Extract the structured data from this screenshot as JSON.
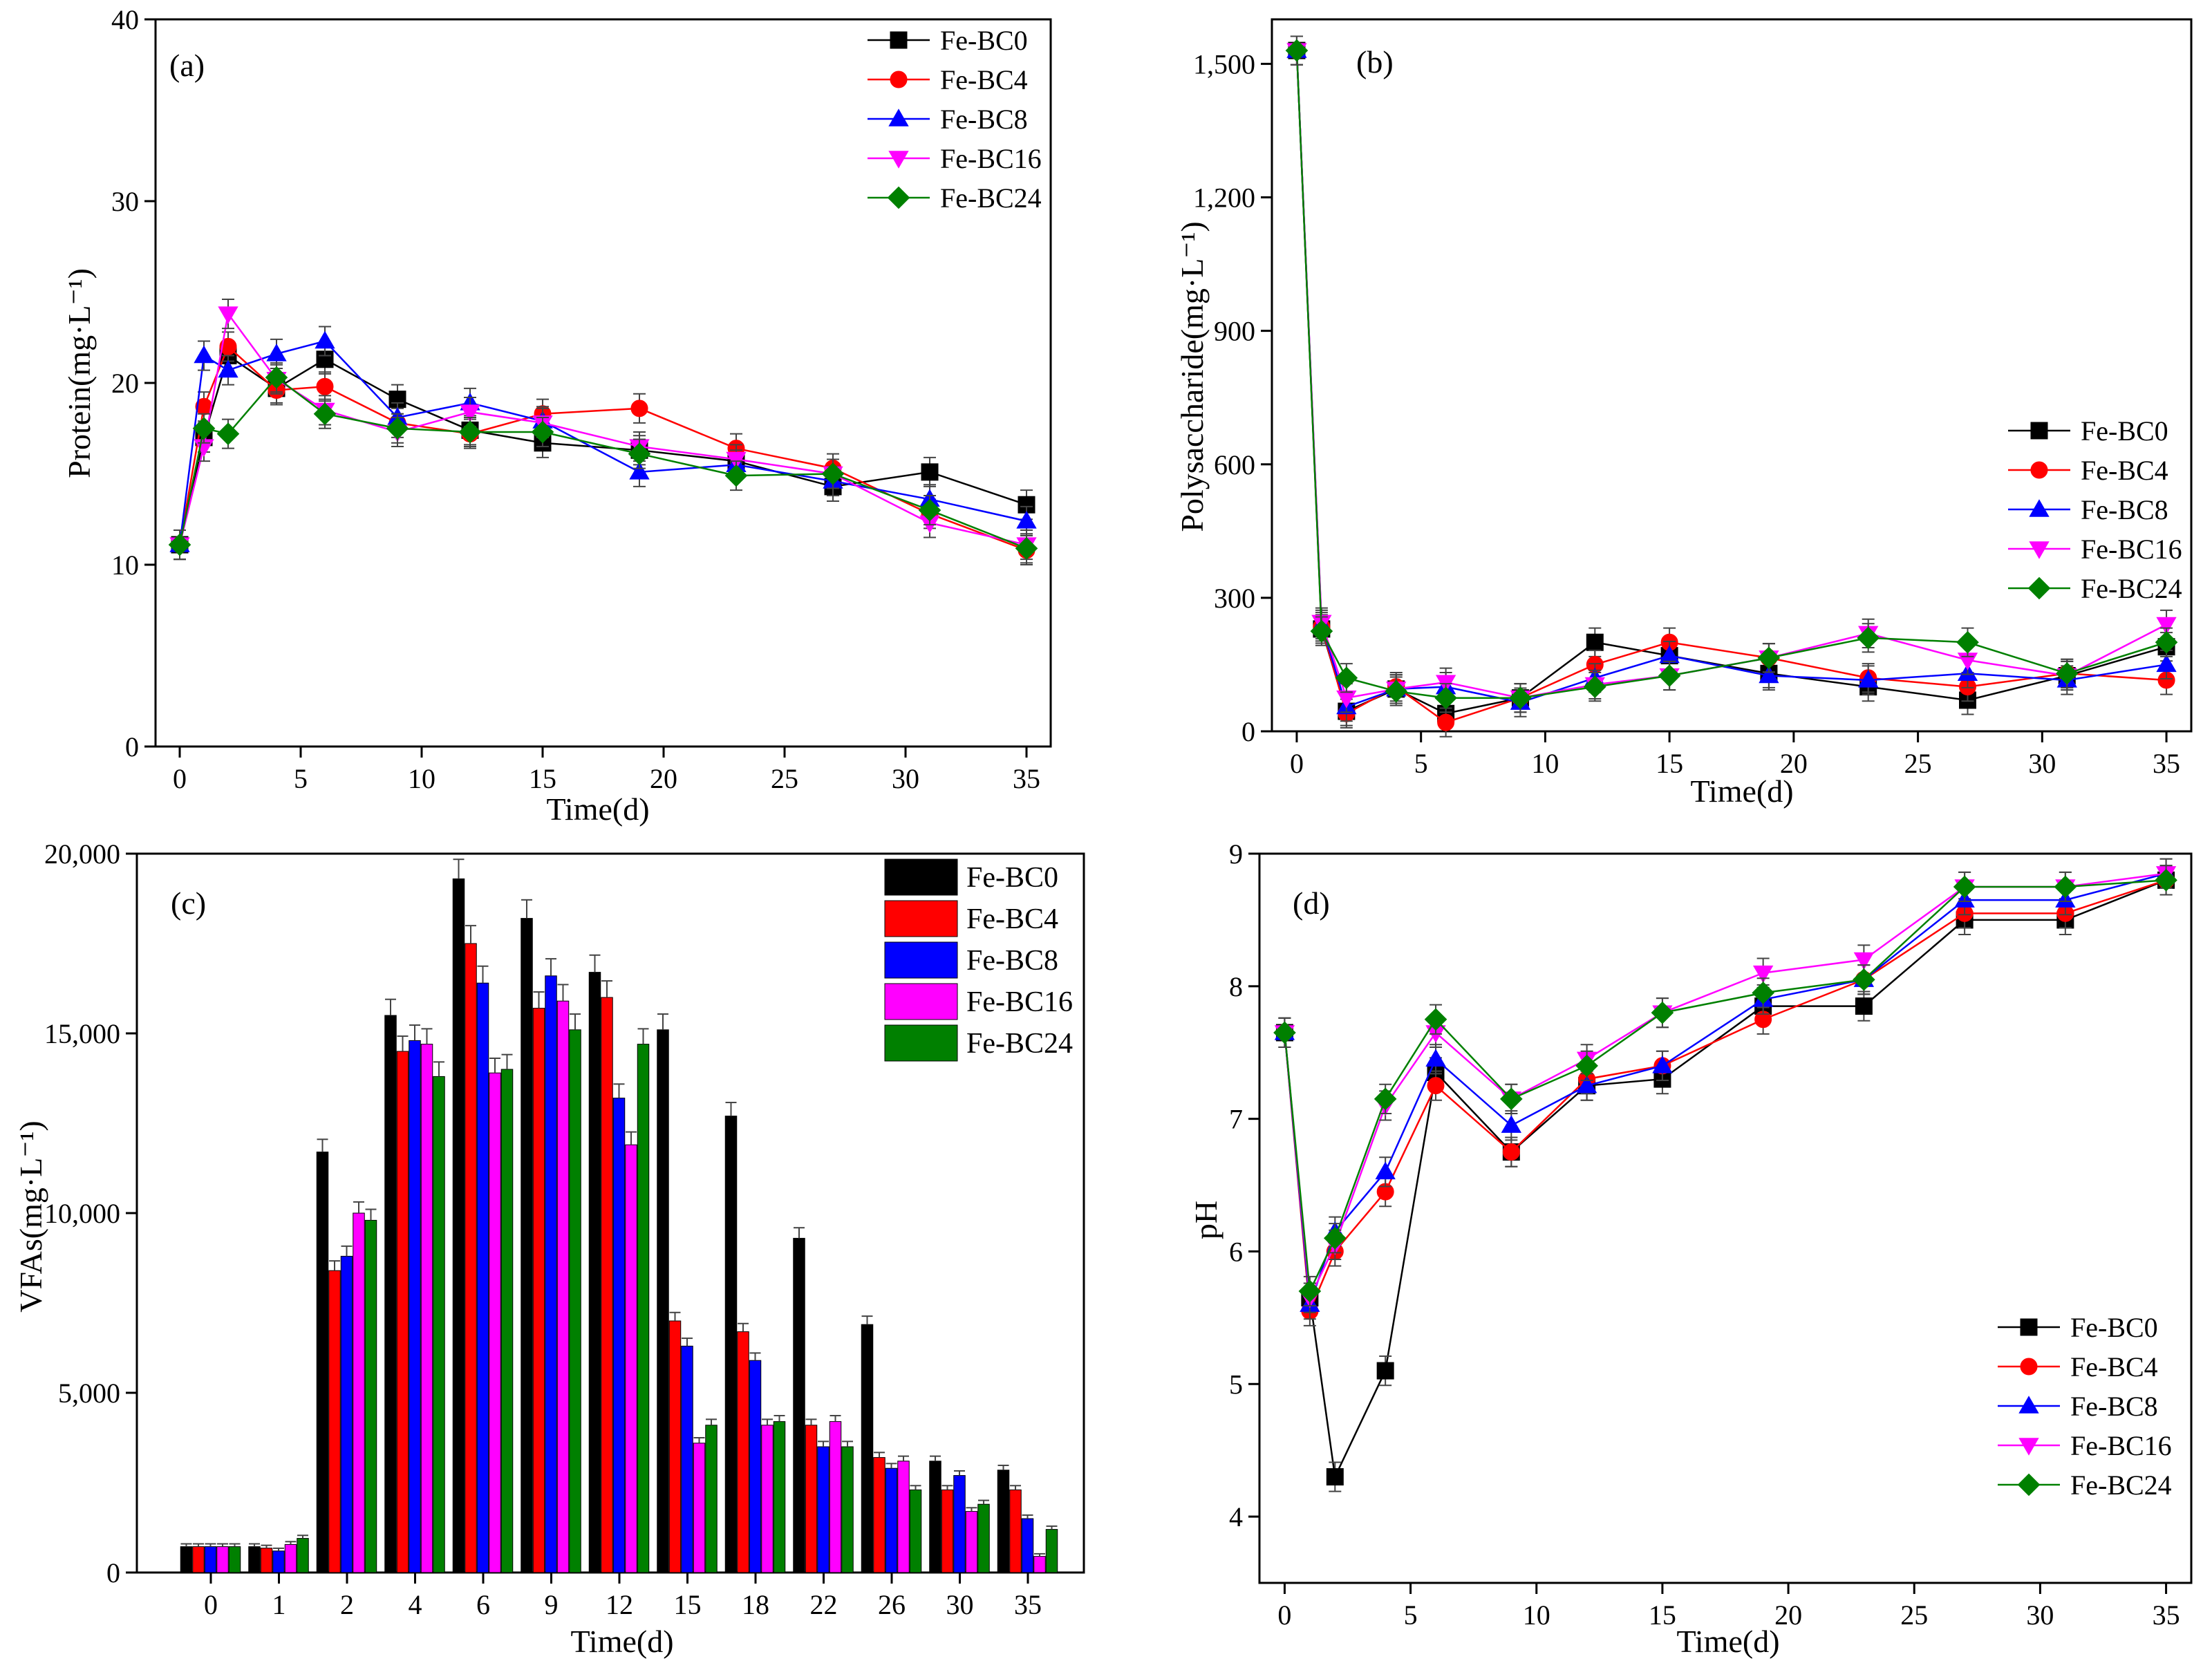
{
  "series_styles": [
    {
      "name": "Fe-BC0",
      "color": "#000000",
      "marker": "square"
    },
    {
      "name": "Fe-BC4",
      "color": "#ff0000",
      "marker": "circle"
    },
    {
      "name": "Fe-BC8",
      "color": "#0000ff",
      "marker": "triangle-up"
    },
    {
      "name": "Fe-BC16",
      "color": "#ff00ff",
      "marker": "triangle-down"
    },
    {
      "name": "Fe-BC24",
      "color": "#008000",
      "marker": "diamond"
    }
  ],
  "chart_data": [
    {
      "panel": "(a)",
      "type": "line",
      "xlabel": "Time(d)",
      "ylabel": "Protein(mg·L⁻¹)",
      "xlim": [
        -1,
        36
      ],
      "ylim": [
        0,
        40
      ],
      "xticks": [
        0,
        5,
        10,
        15,
        20,
        25,
        30,
        35
      ],
      "xtick_labels": [
        "0",
        "5",
        "10",
        "15",
        "20",
        "25",
        "30",
        "35"
      ],
      "yticks": [
        0,
        10,
        20,
        30,
        40
      ],
      "ytick_labels": [
        "0",
        "10",
        "20",
        "30",
        "40"
      ],
      "legend": "top-right",
      "x": [
        0,
        1,
        2,
        4,
        6,
        9,
        12,
        15,
        19,
        23,
        27,
        31,
        35
      ],
      "series": [
        {
          "name": "Fe-BC0",
          "values": [
            11.1,
            17.0,
            21.5,
            19.7,
            21.3,
            19.1,
            17.4,
            16.7,
            16.3,
            15.7,
            14.3,
            15.1,
            13.3
          ]
        },
        {
          "name": "Fe-BC4",
          "values": [
            11.1,
            18.7,
            22.0,
            19.6,
            19.8,
            17.8,
            17.2,
            18.3,
            18.6,
            16.4,
            15.3,
            12.8,
            10.8
          ]
        },
        {
          "name": "Fe-BC8",
          "values": [
            11.1,
            21.5,
            20.7,
            21.6,
            22.3,
            18.1,
            18.9,
            17.9,
            15.1,
            15.5,
            14.6,
            13.6,
            12.4
          ]
        },
        {
          "name": "Fe-BC16",
          "values": [
            11.1,
            16.5,
            23.8,
            20.2,
            18.5,
            17.3,
            18.4,
            17.8,
            16.5,
            15.8,
            15.0,
            12.3,
            11.1
          ]
        },
        {
          "name": "Fe-BC24",
          "values": [
            11.1,
            17.5,
            17.2,
            20.3,
            18.3,
            17.5,
            17.3,
            17.3,
            16.1,
            14.9,
            15.0,
            13.0,
            10.9
          ]
        }
      ]
    },
    {
      "panel": "(b)",
      "type": "line",
      "xlabel": "Time(d)",
      "ylabel": "Polysaccharide(mg·L⁻¹)",
      "xlim": [
        -1,
        36
      ],
      "ylim": [
        0,
        1600
      ],
      "xticks": [
        0,
        5,
        10,
        15,
        20,
        25,
        30,
        35
      ],
      "xtick_labels": [
        "0",
        "5",
        "10",
        "15",
        "20",
        "25",
        "30",
        "35"
      ],
      "yticks": [
        0,
        300,
        600,
        900,
        1200,
        1500
      ],
      "ytick_labels": [
        "0",
        "300",
        "600",
        "900",
        "1,200",
        "1,500"
      ],
      "legend": "right",
      "x": [
        0,
        1,
        2,
        4,
        6,
        9,
        12,
        15,
        19,
        23,
        27,
        31,
        35
      ],
      "series": [
        {
          "name": "Fe-BC0",
          "values": [
            1530,
            230,
            45,
            95,
            40,
            75,
            200,
            170,
            130,
            100,
            70,
            125,
            190
          ]
        },
        {
          "name": "Fe-BC4",
          "values": [
            1530,
            235,
            40,
            100,
            20,
            75,
            150,
            200,
            165,
            120,
            100,
            130,
            115
          ]
        },
        {
          "name": "Fe-BC8",
          "values": [
            1530,
            240,
            55,
            95,
            100,
            65,
            120,
            170,
            125,
            115,
            130,
            115,
            150
          ]
        },
        {
          "name": "Fe-BC16",
          "values": [
            1530,
            245,
            75,
            95,
            110,
            75,
            105,
            125,
            165,
            220,
            160,
            125,
            240
          ]
        },
        {
          "name": "Fe-BC24",
          "values": [
            1530,
            225,
            120,
            90,
            75,
            75,
            100,
            125,
            165,
            210,
            200,
            130,
            200
          ]
        }
      ]
    },
    {
      "panel": "(c)",
      "type": "bar",
      "xlabel": "Time(d)",
      "ylabel": "VFAs(mg·L⁻¹)",
      "ylim": [
        0,
        20000
      ],
      "yticks": [
        0,
        5000,
        10000,
        15000,
        20000
      ],
      "ytick_labels": [
        "0",
        "5,000",
        "10,000",
        "15,000",
        "20,000"
      ],
      "legend": "top-right",
      "categories": [
        "0",
        "1",
        "2",
        "4",
        "6",
        "9",
        "12",
        "15",
        "18",
        "22",
        "26",
        "30",
        "35"
      ],
      "series": [
        {
          "name": "Fe-BC0",
          "values": [
            720,
            720,
            11700,
            15500,
            19300,
            18200,
            16700,
            15100,
            12700,
            9300,
            6900,
            3100,
            2850
          ]
        },
        {
          "name": "Fe-BC4",
          "values": [
            720,
            680,
            8400,
            14500,
            17500,
            15700,
            16000,
            7000,
            6700,
            4100,
            3200,
            2300,
            2300
          ]
        },
        {
          "name": "Fe-BC8",
          "values": [
            720,
            600,
            8800,
            14800,
            16400,
            16600,
            13200,
            6300,
            5900,
            3500,
            2900,
            2700,
            1500
          ]
        },
        {
          "name": "Fe-BC16",
          "values": [
            720,
            780,
            10000,
            14700,
            13900,
            15900,
            11900,
            3600,
            4100,
            4200,
            3100,
            1700,
            450
          ]
        },
        {
          "name": "Fe-BC24",
          "values": [
            720,
            950,
            9800,
            13800,
            14000,
            15100,
            14700,
            4100,
            4200,
            3500,
            2300,
            1900,
            1200
          ]
        }
      ]
    },
    {
      "panel": "(d)",
      "type": "line",
      "xlabel": "Time(d)",
      "ylabel": "pH",
      "xlim": [
        -1,
        36
      ],
      "ylim": [
        3.5,
        9
      ],
      "xticks": [
        0,
        5,
        10,
        15,
        20,
        25,
        30,
        35
      ],
      "xtick_labels": [
        "0",
        "5",
        "10",
        "15",
        "20",
        "25",
        "30",
        "35"
      ],
      "yticks": [
        4,
        5,
        6,
        7,
        8,
        9
      ],
      "ytick_labels": [
        "4",
        "5",
        "6",
        "7",
        "8",
        "9"
      ],
      "legend": "bottom-right",
      "x": [
        0,
        1,
        2,
        4,
        6,
        9,
        12,
        15,
        19,
        23,
        27,
        31,
        35
      ],
      "series": [
        {
          "name": "Fe-BC0",
          "values": [
            7.65,
            5.65,
            4.3,
            5.1,
            7.35,
            6.75,
            7.25,
            7.3,
            7.85,
            7.85,
            8.5,
            8.5,
            8.8
          ]
        },
        {
          "name": "Fe-BC4",
          "values": [
            7.65,
            5.55,
            6.0,
            6.45,
            7.25,
            6.75,
            7.3,
            7.4,
            7.75,
            8.05,
            8.55,
            8.55,
            8.8
          ]
        },
        {
          "name": "Fe-BC8",
          "values": [
            7.65,
            5.6,
            6.15,
            6.6,
            7.45,
            6.95,
            7.25,
            7.4,
            7.9,
            8.05,
            8.65,
            8.65,
            8.85
          ]
        },
        {
          "name": "Fe-BC16",
          "values": [
            7.65,
            5.65,
            6.05,
            7.1,
            7.65,
            7.15,
            7.45,
            7.8,
            8.1,
            8.2,
            8.75,
            8.75,
            8.85
          ]
        },
        {
          "name": "Fe-BC24",
          "values": [
            7.65,
            5.7,
            6.1,
            7.15,
            7.75,
            7.15,
            7.4,
            7.8,
            7.95,
            8.05,
            8.75,
            8.75,
            8.8
          ]
        }
      ]
    }
  ]
}
